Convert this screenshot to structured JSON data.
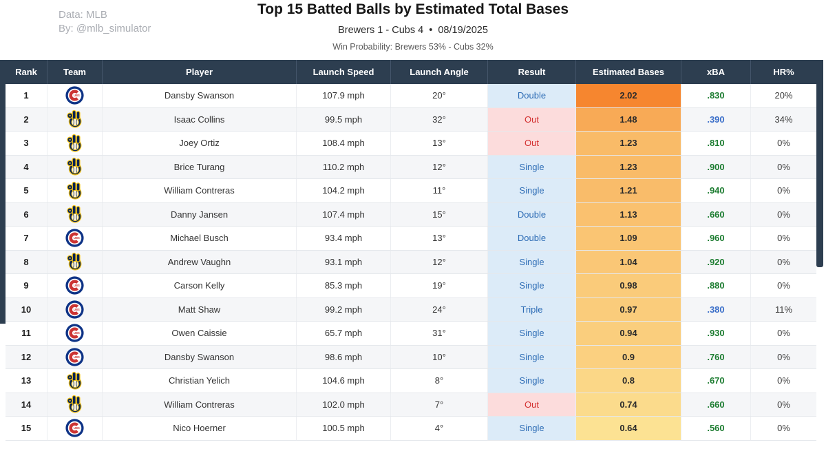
{
  "header": {
    "credit_line1": "Data: MLB",
    "credit_line2": "By: @mlb_simulator",
    "title": "Top 15 Batted Balls by Estimated Total Bases",
    "subtitle": "Brewers 1 - Cubs 4  •  08/19/2025",
    "win_probability": "Win Probability: Brewers 53% - Cubs 32%"
  },
  "colors": {
    "header_bg": "#2d3e50",
    "result_hit_text": "#2d6cb5",
    "result_hit_bg": "#dcebf8",
    "result_out_text": "#d32f2f",
    "result_out_bg": "#fcdcdc",
    "xba_green": "#1e7d32",
    "xba_blue": "#3b6fc9",
    "cubs_blue": "#0e3386",
    "cubs_red": "#cc3433",
    "brewers_navy": "#0a2351",
    "brewers_gold": "#f5c518"
  },
  "table": {
    "columns": [
      "Rank",
      "Team",
      "Player",
      "Launch Speed",
      "Launch Angle",
      "Result",
      "Estimated Bases",
      "xBA",
      "HR%"
    ],
    "rows": [
      {
        "rank": "1",
        "team": "cubs",
        "player": "Dansby Swanson",
        "speed": "107.9 mph",
        "angle": "20°",
        "result": "Double",
        "bases": "2.02",
        "bases_color": "#f6862f",
        "xba": ".830",
        "xba_color": "green",
        "hr": "20%"
      },
      {
        "rank": "2",
        "team": "brewers",
        "player": "Isaac Collins",
        "speed": "99.5 mph",
        "angle": "32°",
        "result": "Out",
        "bases": "1.48",
        "bases_color": "#f8aa56",
        "xba": ".390",
        "xba_color": "blue",
        "hr": "34%"
      },
      {
        "rank": "3",
        "team": "brewers",
        "player": "Joey Ortiz",
        "speed": "108.4 mph",
        "angle": "13°",
        "result": "Out",
        "bases": "1.23",
        "bases_color": "#f9bb68",
        "xba": ".810",
        "xba_color": "green",
        "hr": "0%"
      },
      {
        "rank": "4",
        "team": "brewers",
        "player": "Brice Turang",
        "speed": "110.2 mph",
        "angle": "12°",
        "result": "Single",
        "bases": "1.23",
        "bases_color": "#f9bb68",
        "xba": ".900",
        "xba_color": "green",
        "hr": "0%"
      },
      {
        "rank": "5",
        "team": "brewers",
        "player": "William Contreras",
        "speed": "104.2 mph",
        "angle": "11°",
        "result": "Single",
        "bases": "1.21",
        "bases_color": "#f9bc6a",
        "xba": ".940",
        "xba_color": "green",
        "hr": "0%"
      },
      {
        "rank": "6",
        "team": "brewers",
        "player": "Danny Jansen",
        "speed": "107.4 mph",
        "angle": "15°",
        "result": "Double",
        "bases": "1.13",
        "bases_color": "#fac16f",
        "xba": ".660",
        "xba_color": "green",
        "hr": "0%"
      },
      {
        "rank": "7",
        "team": "cubs",
        "player": "Michael Busch",
        "speed": "93.4 mph",
        "angle": "13°",
        "result": "Double",
        "bases": "1.09",
        "bases_color": "#fac573",
        "xba": ".960",
        "xba_color": "green",
        "hr": "0%"
      },
      {
        "rank": "8",
        "team": "brewers",
        "player": "Andrew Vaughn",
        "speed": "93.1 mph",
        "angle": "12°",
        "result": "Single",
        "bases": "1.04",
        "bases_color": "#fac776",
        "xba": ".920",
        "xba_color": "green",
        "hr": "0%"
      },
      {
        "rank": "9",
        "team": "cubs",
        "player": "Carson Kelly",
        "speed": "85.3 mph",
        "angle": "19°",
        "result": "Single",
        "bases": "0.98",
        "bases_color": "#facb7a",
        "xba": ".880",
        "xba_color": "green",
        "hr": "0%"
      },
      {
        "rank": "10",
        "team": "cubs",
        "player": "Matt Shaw",
        "speed": "99.2 mph",
        "angle": "24°",
        "result": "Triple",
        "bases": "0.97",
        "bases_color": "#facc7b",
        "xba": ".380",
        "xba_color": "blue",
        "hr": "11%"
      },
      {
        "rank": "11",
        "team": "cubs",
        "player": "Owen Caissie",
        "speed": "65.7 mph",
        "angle": "31°",
        "result": "Single",
        "bases": "0.94",
        "bases_color": "#face7d",
        "xba": ".930",
        "xba_color": "green",
        "hr": "0%"
      },
      {
        "rank": "12",
        "team": "cubs",
        "player": "Dansby Swanson",
        "speed": "98.6 mph",
        "angle": "10°",
        "result": "Single",
        "bases": "0.9",
        "bases_color": "#fbd080",
        "xba": ".760",
        "xba_color": "green",
        "hr": "0%"
      },
      {
        "rank": "13",
        "team": "brewers",
        "player": "Christian Yelich",
        "speed": "104.6 mph",
        "angle": "8°",
        "result": "Single",
        "bases": "0.8",
        "bases_color": "#fbd787",
        "xba": ".670",
        "xba_color": "green",
        "hr": "0%"
      },
      {
        "rank": "14",
        "team": "brewers",
        "player": "William Contreras",
        "speed": "102.0 mph",
        "angle": "7°",
        "result": "Out",
        "bases": "0.74",
        "bases_color": "#fbdb8c",
        "xba": ".660",
        "xba_color": "green",
        "hr": "0%"
      },
      {
        "rank": "15",
        "team": "cubs",
        "player": "Nico Hoerner",
        "speed": "100.5 mph",
        "angle": "4°",
        "result": "Single",
        "bases": "0.64",
        "bases_color": "#fce293",
        "xba": ".560",
        "xba_color": "green",
        "hr": "0%"
      }
    ]
  }
}
